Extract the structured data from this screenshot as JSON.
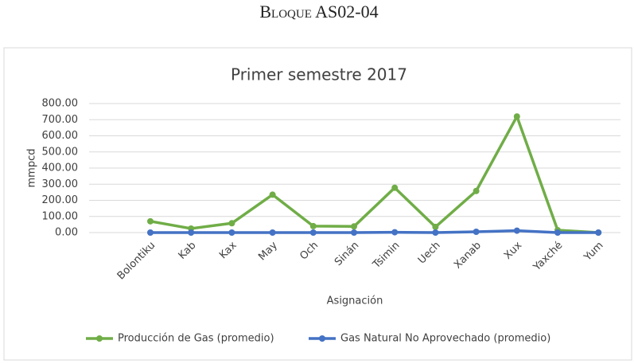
{
  "header": {
    "title": "Bloque AS02-04"
  },
  "chart_data": {
    "type": "line",
    "title": "Primer semestre 2017",
    "x_label": "Asignación",
    "y_label": "mmpcd",
    "categories": [
      "Bolontiku",
      "Kab",
      "Kax",
      "May",
      "Och",
      "Sinán",
      "Tsimin",
      "Uech",
      "Xanab",
      "Xux",
      "Yaxché",
      "Yum"
    ],
    "series": [
      {
        "name": "Producción de Gas (promedio)",
        "color": "#70ad47",
        "values": [
          70,
          25,
          58,
          235,
          40,
          38,
          278,
          35,
          258,
          720,
          15,
          0
        ]
      },
      {
        "name": "Gas Natural No Aprovechado  (promedio)",
        "color": "#4472c4",
        "values": [
          0,
          0,
          0,
          0,
          0,
          0,
          2,
          0,
          5,
          12,
          0,
          0
        ]
      }
    ],
    "ylim": [
      0,
      800
    ],
    "yticks": [
      {
        "value": 0,
        "label": "0.00"
      },
      {
        "value": 100,
        "label": "100.00"
      },
      {
        "value": 200,
        "label": "200.00"
      },
      {
        "value": 300,
        "label": "300.00"
      },
      {
        "value": 400,
        "label": "400.00"
      },
      {
        "value": 500,
        "label": "500.00"
      },
      {
        "value": 600,
        "label": "600.00"
      },
      {
        "value": 700,
        "label": "700.00"
      },
      {
        "value": 800,
        "label": "800.00"
      }
    ],
    "grid": true,
    "legend": "bottom"
  }
}
